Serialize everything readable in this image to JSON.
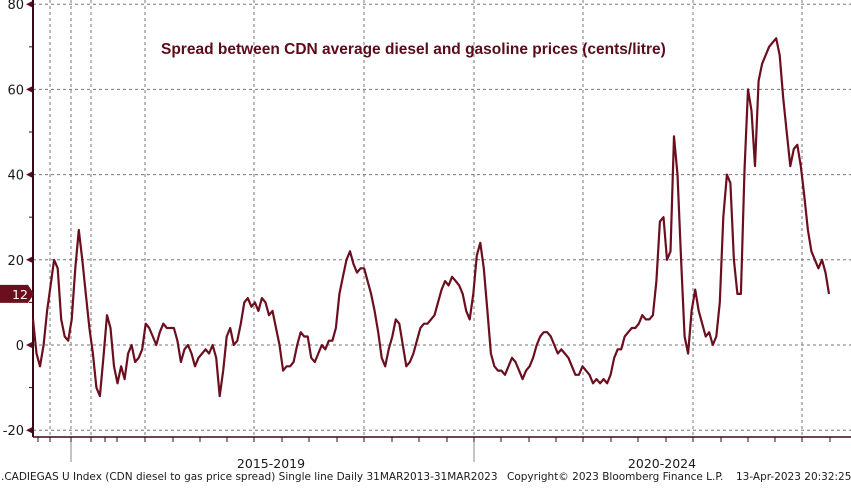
{
  "chart_data": {
    "type": "line",
    "title": "Spread between CDN average diesel and gasoline prices (cents/litre)",
    "xlabel": "",
    "ylabel": "",
    "ylim": [
      -20,
      80
    ],
    "yticks": [
      -20,
      0,
      20,
      40,
      60,
      80
    ],
    "ytick_labels": [
      "-20",
      "0",
      "20",
      "40",
      "60",
      "80"
    ],
    "period_labels": [
      "2015-2019",
      "2020-2024"
    ],
    "grid": true,
    "legend": "none",
    "last_value": 12,
    "last_value_label": "12",
    "line_color": "#6b0f1f",
    "series": [
      {
        "name": ".CADIEGAS U Index (CDN diesel to gas price spread)",
        "values": [
          6,
          -2,
          -5,
          0,
          8,
          14,
          20,
          18,
          6,
          2,
          1,
          6,
          18,
          27,
          20,
          12,
          4,
          -2,
          -10,
          -12,
          -3,
          7,
          4,
          -5,
          -9,
          -5,
          -8,
          -2,
          0,
          -4,
          -3,
          -1,
          5,
          4,
          2,
          0,
          3,
          5,
          4,
          4,
          4,
          1,
          -4,
          -1,
          0,
          -2,
          -5,
          -3,
          -2,
          -1,
          -2,
          0,
          -3,
          -12,
          -6,
          2,
          4,
          0,
          1,
          5,
          10,
          11,
          9,
          10,
          8,
          11,
          10,
          7,
          8,
          4,
          0,
          -6,
          -5,
          -5,
          -4,
          0,
          3,
          2,
          2,
          -3,
          -4,
          -2,
          0,
          -1,
          1,
          1,
          4,
          12,
          16,
          20,
          22,
          19,
          17,
          18,
          18,
          15,
          12,
          8,
          3,
          -3,
          -5,
          -1,
          2,
          6,
          5,
          0,
          -5,
          -4,
          -2,
          1,
          4,
          5,
          5,
          6,
          7,
          10,
          13,
          15,
          14,
          16,
          15,
          14,
          12,
          8,
          6,
          12,
          21,
          24,
          18,
          8,
          -2,
          -5,
          -6,
          -6,
          -7,
          -5,
          -3,
          -4,
          -6,
          -8,
          -6,
          -5,
          -3,
          0,
          2,
          3,
          3,
          2,
          0,
          -2,
          -1,
          -2,
          -3,
          -5,
          -7,
          -7,
          -5,
          -6,
          -7,
          -9,
          -8,
          -9,
          -8,
          -9,
          -7,
          -3,
          -1,
          -1,
          2,
          3,
          4,
          4,
          5,
          7,
          6,
          6,
          7,
          15,
          29,
          30,
          20,
          22,
          49,
          40,
          20,
          2,
          -2,
          8,
          13,
          8,
          5,
          2,
          3,
          0,
          2,
          10,
          30,
          40,
          38,
          20,
          12,
          12,
          41,
          60,
          55,
          42,
          62,
          66,
          68,
          70,
          71,
          72,
          68,
          58,
          50,
          42,
          46,
          47,
          42,
          35,
          27,
          22,
          20,
          18,
          20,
          17,
          12
        ]
      }
    ]
  },
  "footer": {
    "index_desc": ".CADIEGAS U Index (CDN diesel to gas price spread) Single line  Daily 31MAR2013-31MAR2023",
    "copyright": "Copyright© 2023 Bloomberg Finance L.P.",
    "timestamp": "13-Apr-2023 20:32:25"
  }
}
